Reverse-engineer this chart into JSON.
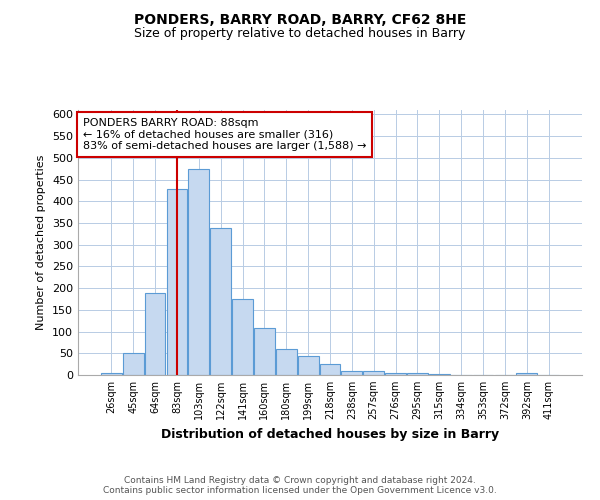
{
  "title": "PONDERS, BARRY ROAD, BARRY, CF62 8HE",
  "subtitle": "Size of property relative to detached houses in Barry",
  "xlabel": "Distribution of detached houses by size in Barry",
  "ylabel": "Number of detached properties",
  "bar_labels": [
    "26sqm",
    "45sqm",
    "64sqm",
    "83sqm",
    "103sqm",
    "122sqm",
    "141sqm",
    "160sqm",
    "180sqm",
    "199sqm",
    "218sqm",
    "238sqm",
    "257sqm",
    "276sqm",
    "295sqm",
    "315sqm",
    "334sqm",
    "353sqm",
    "372sqm",
    "392sqm",
    "411sqm"
  ],
  "bar_heights": [
    5,
    50,
    188,
    428,
    474,
    338,
    175,
    108,
    60,
    44,
    25,
    10,
    10,
    5,
    5,
    3,
    0,
    0,
    0,
    5,
    0
  ],
  "bar_color": "#c6d9f0",
  "bar_edge_color": "#5b9bd5",
  "vline_x_index": 3,
  "vline_color": "#cc0000",
  "annotation_title": "PONDERS BARRY ROAD: 88sqm",
  "annotation_line1": "← 16% of detached houses are smaller (316)",
  "annotation_line2": "83% of semi-detached houses are larger (1,588) →",
  "annotation_box_color": "#ffffff",
  "annotation_box_edge": "#cc0000",
  "ylim": [
    0,
    610
  ],
  "yticks": [
    0,
    50,
    100,
    150,
    200,
    250,
    300,
    350,
    400,
    450,
    500,
    550,
    600
  ],
  "footer_line1": "Contains HM Land Registry data © Crown copyright and database right 2024.",
  "footer_line2": "Contains public sector information licensed under the Open Government Licence v3.0.",
  "background_color": "#ffffff",
  "grid_color": "#b8cce4",
  "title_fontsize": 10,
  "subtitle_fontsize": 9
}
